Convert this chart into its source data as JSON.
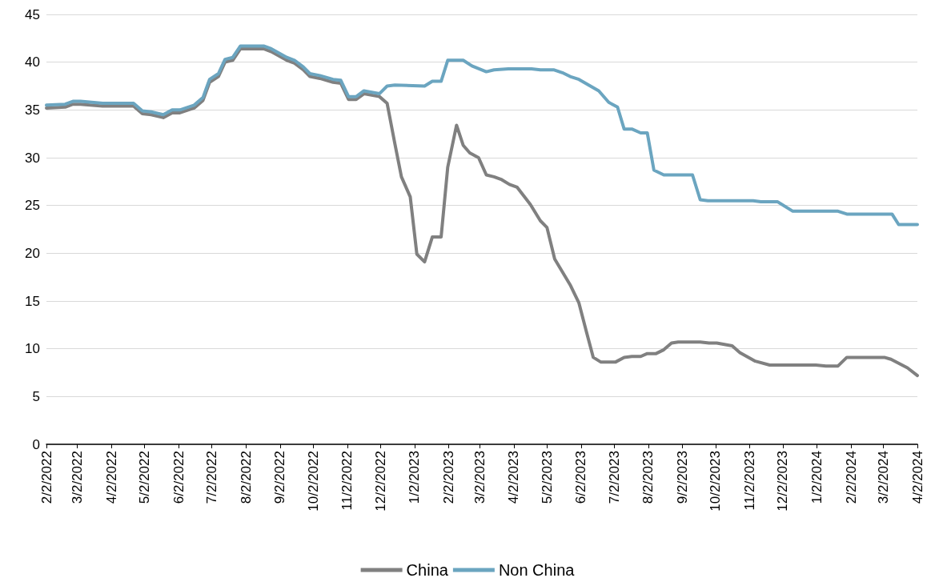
{
  "chart_data": {
    "type": "line",
    "xlim": [
      "2022-02-02",
      "2024-04-02"
    ],
    "xticks": [
      {
        "value": "2022-02-02",
        "label": "2/2/2022"
      },
      {
        "value": "2022-03-02",
        "label": "3/2/2022"
      },
      {
        "value": "2022-04-02",
        "label": "4/2/2022"
      },
      {
        "value": "2022-05-02",
        "label": "5/2/2022"
      },
      {
        "value": "2022-06-02",
        "label": "6/2/2022"
      },
      {
        "value": "2022-07-02",
        "label": "7/2/2022"
      },
      {
        "value": "2022-08-02",
        "label": "8/2/2022"
      },
      {
        "value": "2022-09-02",
        "label": "9/2/2022"
      },
      {
        "value": "2022-10-02",
        "label": "10/2/2022"
      },
      {
        "value": "2022-11-02",
        "label": "11/2/2022"
      },
      {
        "value": "2022-12-02",
        "label": "12/2/2022"
      },
      {
        "value": "2023-01-02",
        "label": "1/2/2023"
      },
      {
        "value": "2023-02-02",
        "label": "2/2/2023"
      },
      {
        "value": "2023-03-02",
        "label": "3/2/2023"
      },
      {
        "value": "2023-04-02",
        "label": "4/2/2023"
      },
      {
        "value": "2023-05-02",
        "label": "5/2/2023"
      },
      {
        "value": "2023-06-02",
        "label": "6/2/2023"
      },
      {
        "value": "2023-07-02",
        "label": "7/2/2023"
      },
      {
        "value": "2023-08-02",
        "label": "8/2/2023"
      },
      {
        "value": "2023-09-02",
        "label": "9/2/2023"
      },
      {
        "value": "2023-10-02",
        "label": "10/2/2023"
      },
      {
        "value": "2023-11-02",
        "label": "11/2/2023"
      },
      {
        "value": "2023-12-02",
        "label": "12/2/2023"
      },
      {
        "value": "2024-01-02",
        "label": "1/2/2024"
      },
      {
        "value": "2024-02-02",
        "label": "2/2/2024"
      },
      {
        "value": "2024-03-02",
        "label": "3/2/2024"
      },
      {
        "value": "2024-04-02",
        "label": "4/2/2024"
      }
    ],
    "ylim": [
      0,
      45
    ],
    "yticks": [
      0,
      5,
      10,
      15,
      20,
      25,
      30,
      35,
      40,
      45
    ],
    "grid": "y",
    "legend": "bottom",
    "marker": "none",
    "line_style": "solid",
    "series": [
      {
        "name": "China",
        "color": "#808080",
        "x": [
          "2022-02-02",
          "2022-02-19",
          "2022-02-26",
          "2022-03-05",
          "2022-03-25",
          "2022-04-22",
          "2022-04-30",
          "2022-05-08",
          "2022-05-19",
          "2022-05-27",
          "2022-06-03",
          "2022-06-16",
          "2022-06-24",
          "2022-06-30",
          "2022-07-08",
          "2022-07-14",
          "2022-07-21",
          "2022-07-28",
          "2022-08-18",
          "2022-08-25",
          "2022-09-08",
          "2022-09-15",
          "2022-09-23",
          "2022-09-29",
          "2022-10-08",
          "2022-10-20",
          "2022-10-27",
          "2022-11-03",
          "2022-11-10",
          "2022-11-17",
          "2022-12-01",
          "2022-12-08",
          "2022-12-15",
          "2022-12-21",
          "2022-12-29",
          "2023-01-04",
          "2023-01-11",
          "2023-01-18",
          "2023-01-26",
          "2023-02-01",
          "2023-02-09",
          "2023-02-15",
          "2023-02-21",
          "2023-03-01",
          "2023-03-08",
          "2023-03-15",
          "2023-03-22",
          "2023-03-29",
          "2023-04-05",
          "2023-04-17",
          "2023-04-26",
          "2023-05-02",
          "2023-05-09",
          "2023-05-23",
          "2023-05-31",
          "2023-06-07",
          "2023-06-13",
          "2023-06-20",
          "2023-07-03",
          "2023-07-11",
          "2023-07-18",
          "2023-07-26",
          "2023-08-01",
          "2023-08-09",
          "2023-08-16",
          "2023-08-23",
          "2023-08-29",
          "2023-09-18",
          "2023-09-26",
          "2023-10-03",
          "2023-10-17",
          "2023-10-24",
          "2023-11-07",
          "2023-11-20",
          "2023-12-05",
          "2024-01-01",
          "2024-01-10",
          "2024-01-21",
          "2024-01-29",
          "2024-03-03",
          "2024-03-09",
          "2024-03-24",
          "2024-04-02"
        ],
        "values": [
          35.2,
          35.3,
          35.6,
          35.6,
          35.4,
          35.4,
          34.6,
          34.5,
          34.2,
          34.7,
          34.7,
          35.2,
          36.0,
          37.9,
          38.5,
          40.0,
          40.2,
          41.4,
          41.4,
          41.1,
          40.2,
          39.9,
          39.2,
          38.5,
          38.3,
          37.9,
          37.8,
          36.1,
          36.1,
          36.7,
          36.4,
          35.7,
          31.5,
          28.0,
          25.9,
          19.9,
          19.1,
          21.7,
          21.7,
          29.0,
          33.4,
          31.3,
          30.5,
          30.0,
          28.2,
          28.0,
          27.7,
          27.2,
          26.9,
          25.1,
          23.4,
          22.7,
          19.4,
          16.7,
          14.8,
          11.7,
          9.1,
          8.6,
          8.6,
          9.1,
          9.2,
          9.2,
          9.5,
          9.5,
          9.9,
          10.6,
          10.7,
          10.7,
          10.6,
          10.6,
          10.3,
          9.6,
          8.7,
          8.3,
          8.3,
          8.3,
          8.2,
          8.2,
          9.1,
          9.1,
          8.9,
          8.0,
          7.2
        ]
      },
      {
        "name": "Non China",
        "color": "#6ba5c0",
        "x": [
          "2022-02-02",
          "2022-02-19",
          "2022-02-26",
          "2022-03-05",
          "2022-03-25",
          "2022-04-22",
          "2022-04-30",
          "2022-05-08",
          "2022-05-19",
          "2022-05-27",
          "2022-06-03",
          "2022-06-16",
          "2022-06-24",
          "2022-06-30",
          "2022-07-08",
          "2022-07-14",
          "2022-07-21",
          "2022-07-28",
          "2022-08-18",
          "2022-08-25",
          "2022-09-08",
          "2022-09-15",
          "2022-09-23",
          "2022-09-29",
          "2022-10-08",
          "2022-10-20",
          "2022-10-27",
          "2022-11-03",
          "2022-11-10",
          "2022-11-17",
          "2022-12-01",
          "2022-12-08",
          "2022-12-15",
          "2023-01-11",
          "2023-01-18",
          "2023-01-26",
          "2023-02-01",
          "2023-02-15",
          "2023-02-23",
          "2023-03-08",
          "2023-03-15",
          "2023-03-28",
          "2023-04-18",
          "2023-04-26",
          "2023-05-08",
          "2023-05-16",
          "2023-05-23",
          "2023-05-31",
          "2023-06-18",
          "2023-06-27",
          "2023-07-05",
          "2023-07-11",
          "2023-07-18",
          "2023-07-26",
          "2023-08-01",
          "2023-08-07",
          "2023-08-16",
          "2023-09-11",
          "2023-09-18",
          "2023-09-25",
          "2023-11-05",
          "2023-11-12",
          "2023-11-27",
          "2023-12-11",
          "2024-01-21",
          "2024-01-29",
          "2024-03-10",
          "2024-03-16",
          "2024-04-02"
        ],
        "values": [
          35.5,
          35.6,
          35.9,
          35.9,
          35.7,
          35.7,
          34.9,
          34.8,
          34.5,
          35.0,
          35.0,
          35.5,
          36.3,
          38.2,
          38.8,
          40.3,
          40.5,
          41.7,
          41.7,
          41.4,
          40.5,
          40.2,
          39.5,
          38.8,
          38.6,
          38.2,
          38.1,
          36.4,
          36.4,
          37.0,
          36.7,
          37.5,
          37.6,
          37.5,
          38.0,
          38.0,
          40.2,
          40.2,
          39.6,
          39.0,
          39.2,
          39.3,
          39.3,
          39.2,
          39.2,
          38.9,
          38.5,
          38.2,
          37.0,
          35.8,
          35.3,
          33.0,
          33.0,
          32.6,
          32.6,
          28.7,
          28.2,
          28.2,
          25.6,
          25.5,
          25.5,
          25.4,
          25.4,
          24.4,
          24.4,
          24.1,
          24.1,
          23.0,
          23.0
        ]
      }
    ]
  }
}
